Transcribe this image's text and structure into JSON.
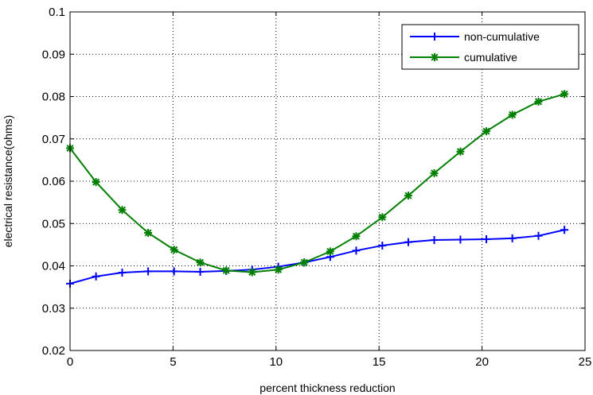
{
  "chart_data": {
    "type": "line",
    "title": "",
    "xlabel": "percent thickness reduction",
    "ylabel": "electrical resistance(ohms)",
    "xlim": [
      0,
      25
    ],
    "ylim": [
      0.02,
      0.1
    ],
    "xticks": [
      0,
      5,
      10,
      15,
      20,
      25
    ],
    "xtick_labels": [
      "0",
      "5",
      "10",
      "15",
      "20",
      "25"
    ],
    "yticks": [
      0.02,
      0.03,
      0.04,
      0.05,
      0.06,
      0.07,
      0.08,
      0.09,
      0.1
    ],
    "ytick_labels": [
      "0.02",
      "0.03",
      "0.04",
      "0.05",
      "0.06",
      "0.07",
      "0.08",
      "0.09",
      "0.1"
    ],
    "grid": true,
    "legend_position": "top-right",
    "series": [
      {
        "name": "non-cumulative",
        "color": "#0000ff",
        "marker": "plus",
        "x": [
          0,
          1.26,
          2.53,
          3.79,
          5.05,
          6.32,
          7.58,
          8.84,
          10.11,
          11.37,
          12.63,
          13.89,
          15.16,
          16.42,
          17.68,
          18.95,
          20.21,
          21.47,
          22.74,
          24.0
        ],
        "y": [
          0.0358,
          0.0375,
          0.0384,
          0.0387,
          0.0387,
          0.0386,
          0.0388,
          0.0391,
          0.0398,
          0.0408,
          0.0421,
          0.0436,
          0.0448,
          0.0456,
          0.0461,
          0.0462,
          0.0463,
          0.0465,
          0.0471,
          0.0485
        ]
      },
      {
        "name": "cumulative",
        "color": "#007f00",
        "marker": "asterisk",
        "x": [
          0,
          1.26,
          2.53,
          3.79,
          5.05,
          6.32,
          7.58,
          8.84,
          10.11,
          11.37,
          12.63,
          13.89,
          15.16,
          16.42,
          17.68,
          18.95,
          20.21,
          21.47,
          22.74,
          24.0
        ],
        "y": [
          0.0678,
          0.0598,
          0.0532,
          0.0478,
          0.0438,
          0.0408,
          0.0389,
          0.0385,
          0.0391,
          0.0408,
          0.0434,
          0.047,
          0.0515,
          0.0566,
          0.0619,
          0.067,
          0.0718,
          0.0757,
          0.0788,
          0.0806
        ]
      }
    ]
  }
}
